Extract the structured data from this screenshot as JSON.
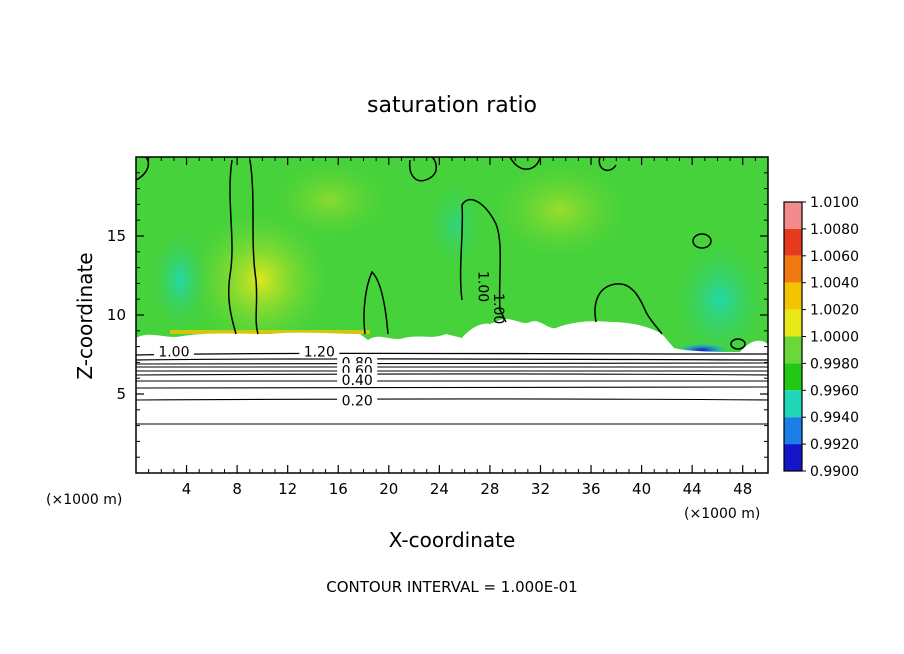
{
  "chart_data": {
    "type": "heatmap",
    "title": "saturation ratio",
    "xlabel": "X-coordinate",
    "ylabel": "Z-coordinate",
    "x_unit": "(×1000 m)",
    "y_unit": "(×1000 m)",
    "xlim": [
      0,
      50
    ],
    "ylim": [
      0,
      20
    ],
    "x_ticks": [
      4,
      8,
      12,
      16,
      20,
      24,
      28,
      32,
      36,
      40,
      44,
      48
    ],
    "y_ticks": [
      5,
      10,
      15
    ],
    "footer": "CONTOUR INTERVAL = 1.000E-01",
    "colorbar": {
      "levels": [
        "1.0100",
        "1.0080",
        "1.0060",
        "1.0040",
        "1.0020",
        "1.0000",
        "0.9980",
        "0.9960",
        "0.9940",
        "0.9920",
        "0.9900"
      ],
      "colors": [
        "#f28c8c",
        "#e53a1e",
        "#f07a10",
        "#f5c400",
        "#e8e81a",
        "#6ad83a",
        "#22c814",
        "#20d8b8",
        "#1a80e8",
        "#1414c8",
        "#7a14a8"
      ]
    },
    "contour_labels": [
      {
        "text": "1.00",
        "x": 3.0,
        "z": 7.7
      },
      {
        "text": "1.20",
        "x": 14.5,
        "z": 7.7
      },
      {
        "text": "0.80",
        "x": 17.5,
        "z": 7.0
      },
      {
        "text": "0.60",
        "x": 17.5,
        "z": 6.5
      },
      {
        "text": "0.40",
        "x": 17.5,
        "z": 5.9
      },
      {
        "text": "0.20",
        "x": 17.5,
        "z": 4.6
      },
      {
        "text": "1.00",
        "x": 27.5,
        "z": 11.8
      },
      {
        "text": "1.00",
        "x": 28.7,
        "z": 10.4
      }
    ],
    "contour_levels_below_cloud_base_z": [
      3.2,
      4.6,
      5.3,
      5.7,
      6.0,
      6.3,
      6.6,
      6.9,
      7.2
    ]
  }
}
